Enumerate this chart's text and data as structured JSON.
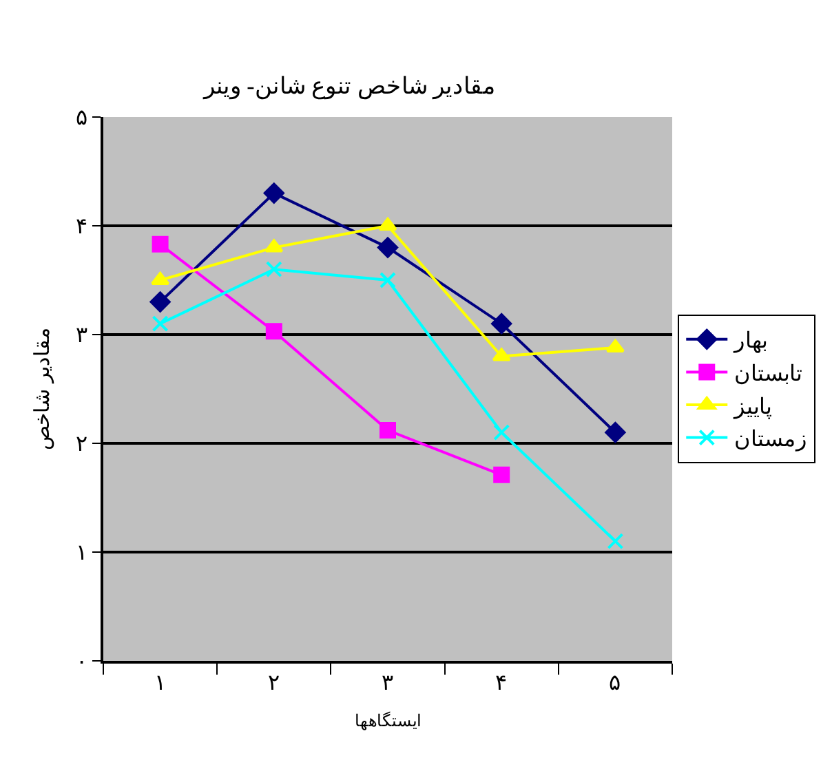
{
  "chart_data": {
    "type": "line",
    "title": "مقادیر شاخص تنوع شانن- وینر",
    "xlabel": "ایستگاهها",
    "ylabel": "مقادیر شاخص",
    "categories": [
      "۱",
      "۲",
      "۳",
      "۴",
      "۵"
    ],
    "series": [
      {
        "name": "بهار",
        "color": "#000080",
        "marker": "diamond",
        "values": [
          3.3,
          4.3,
          3.8,
          3.1,
          2.1
        ]
      },
      {
        "name": "تابستان",
        "color": "#ff00ff",
        "marker": "square",
        "values": [
          3.83,
          3.03,
          2.12,
          1.71,
          null
        ]
      },
      {
        "name": "پاییز",
        "color": "#ffff00",
        "marker": "triangle",
        "values": [
          3.5,
          3.8,
          4.0,
          2.8,
          2.88
        ]
      },
      {
        "name": "زمستان",
        "color": "#00ffff",
        "marker": "cross",
        "values": [
          3.1,
          3.6,
          3.5,
          2.1,
          1.1
        ]
      }
    ],
    "ylim": [
      0,
      5
    ],
    "yticks": [
      {
        "value": 0,
        "label": "۰"
      },
      {
        "value": 1,
        "label": "۱"
      },
      {
        "value": 2,
        "label": "۲"
      },
      {
        "value": 3,
        "label": "۳"
      },
      {
        "value": 4,
        "label": "۴"
      },
      {
        "value": 5,
        "label": "۵"
      }
    ],
    "grid": "y",
    "legend": "right"
  }
}
